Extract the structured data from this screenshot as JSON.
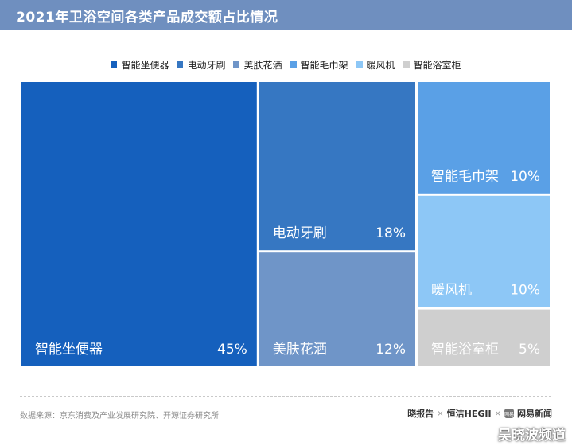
{
  "header": {
    "title": "2021年卫浴空间各类产品成交额占比情况",
    "bg": "#6f8fbf"
  },
  "chart_data": {
    "type": "treemap",
    "title": "2021年卫浴空间各类产品成交额占比情况",
    "legend_position": "top-center",
    "unit": "%",
    "items": [
      {
        "name": "智能坐便器",
        "value": 45,
        "label": "45%",
        "color": "#1560bd"
      },
      {
        "name": "电动牙刷",
        "value": 18,
        "label": "18%",
        "color": "#3677c2"
      },
      {
        "name": "美肤花洒",
        "value": 12,
        "label": "12%",
        "color": "#6f95c8"
      },
      {
        "name": "智能毛巾架",
        "value": 10,
        "label": "10%",
        "color": "#5aa0e6"
      },
      {
        "name": "暖风机",
        "value": 10,
        "label": "10%",
        "color": "#8dc7f6"
      },
      {
        "name": "智能浴室柜",
        "value": 5,
        "label": "5%",
        "color": "#cfcfcf"
      }
    ]
  },
  "footer": {
    "source": "数据来源：京东消费及产业发展研究院、开源证券研究所",
    "brand_1": "晓报告",
    "brand_sep_1": "×",
    "brand_2": "恒洁HEGII",
    "brand_sep_2": "×",
    "brand_badge": "网易",
    "brand_3": "网易新闻"
  },
  "watermark": "吴晓波频道"
}
